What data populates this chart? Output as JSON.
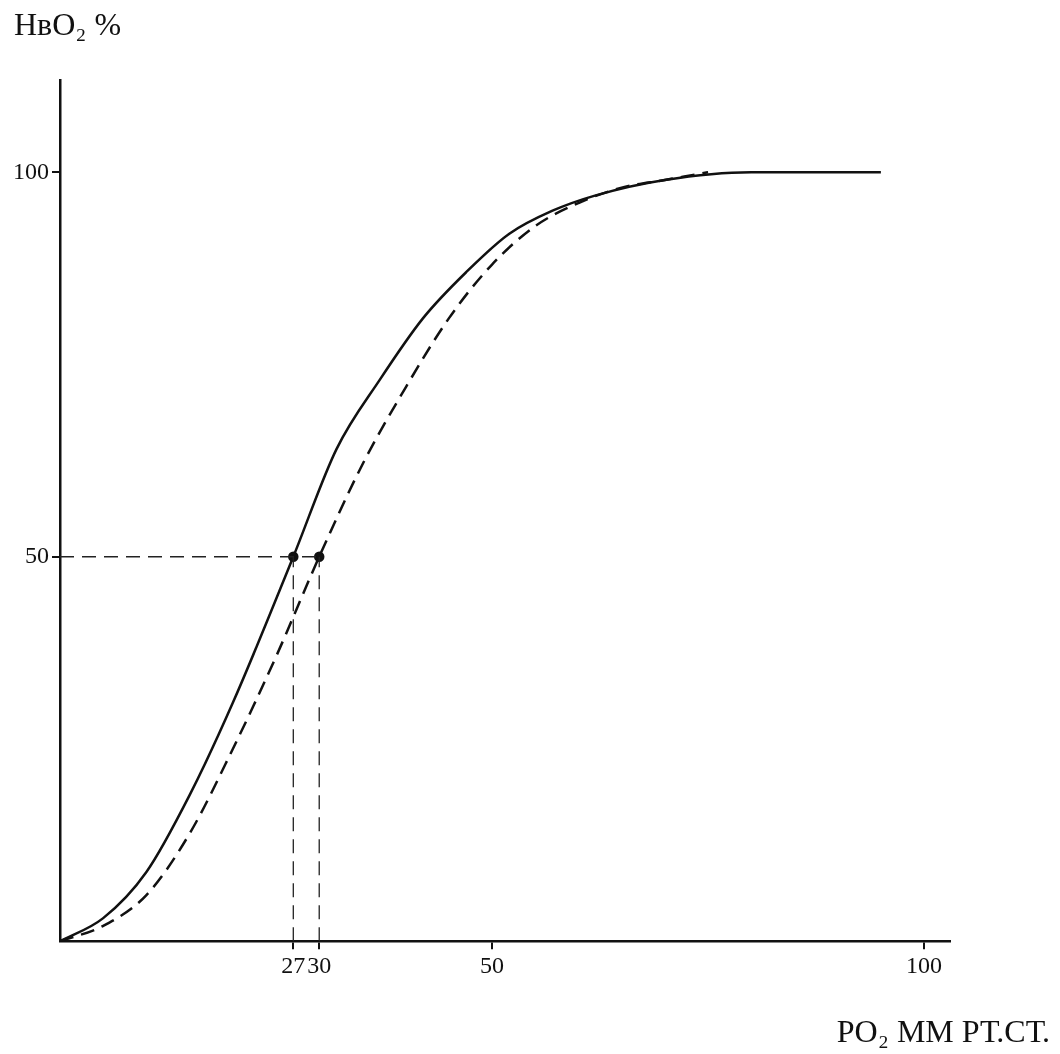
{
  "chart_data": {
    "type": "line",
    "xlabel": "PO₂ ММ РТ.СТ.",
    "ylabel": "HвO₂ %",
    "xlim": [
      0,
      103
    ],
    "ylim": [
      0,
      112
    ],
    "xticks": [
      27,
      30,
      50,
      100
    ],
    "yticks": [
      50,
      100
    ],
    "grid": false,
    "legend": false,
    "series": [
      {
        "color": "#111111",
        "line_style": "solid",
        "marker": "none",
        "x": [
          0,
          5,
          10,
          15,
          20,
          27,
          32,
          37,
          42,
          47,
          52,
          57,
          62,
          70,
          80,
          95
        ],
        "values": [
          0,
          3,
          9,
          19,
          31,
          50,
          64,
          73,
          81,
          87,
          92,
          95,
          97,
          99,
          100,
          100
        ]
      },
      {
        "color": "#111111",
        "line_style": "dashed",
        "marker": "none",
        "x": [
          0,
          5,
          10,
          15,
          20,
          25,
          30,
          35,
          40,
          45,
          50,
          55,
          60,
          65,
          70,
          75
        ],
        "values": [
          0,
          2,
          6,
          14,
          25,
          37,
          50,
          62,
          72,
          81,
          88,
          93,
          96,
          98,
          99,
          100
        ]
      },
      {
        "type": "scatter",
        "color": "#111111",
        "marker": "circle",
        "x": [
          27,
          30
        ],
        "values": [
          50,
          50
        ]
      }
    ],
    "ref_lines": [
      {
        "axis": "y",
        "value": 50,
        "line_style": "dashed"
      },
      {
        "axis": "x",
        "value": 27,
        "line_style": "dashed"
      },
      {
        "axis": "x",
        "value": 30,
        "line_style": "dashed"
      }
    ]
  }
}
